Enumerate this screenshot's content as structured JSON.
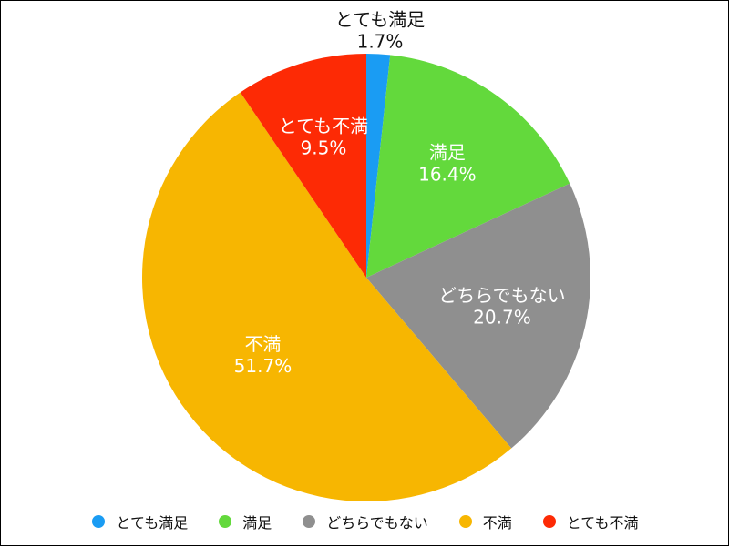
{
  "chart_data": {
    "type": "pie",
    "slices": [
      {
        "label": "とても満足",
        "value": 1.7,
        "value_label": "1.7%",
        "color": "#1a9cf3",
        "label_color": "#111111"
      },
      {
        "label": "満足",
        "value": 16.4,
        "value_label": "16.4%",
        "color": "#63d93c",
        "label_color": "#ffffff"
      },
      {
        "label": "どちらでもない",
        "value": 20.7,
        "value_label": "20.7%",
        "color": "#8f8f8f",
        "label_color": "#ffffff"
      },
      {
        "label": "不満",
        "value": 51.7,
        "value_label": "51.7%",
        "color": "#f7b601",
        "label_color": "#ffffff"
      },
      {
        "label": "とても不満",
        "value": 9.5,
        "value_label": "9.5%",
        "color": "#fd2a05",
        "label_color": "#ffffff"
      }
    ],
    "legend": {
      "placement": "bottom",
      "entries": [
        "とても満足",
        "満足",
        "どちらでもない",
        "不満",
        "とても不満"
      ]
    }
  }
}
